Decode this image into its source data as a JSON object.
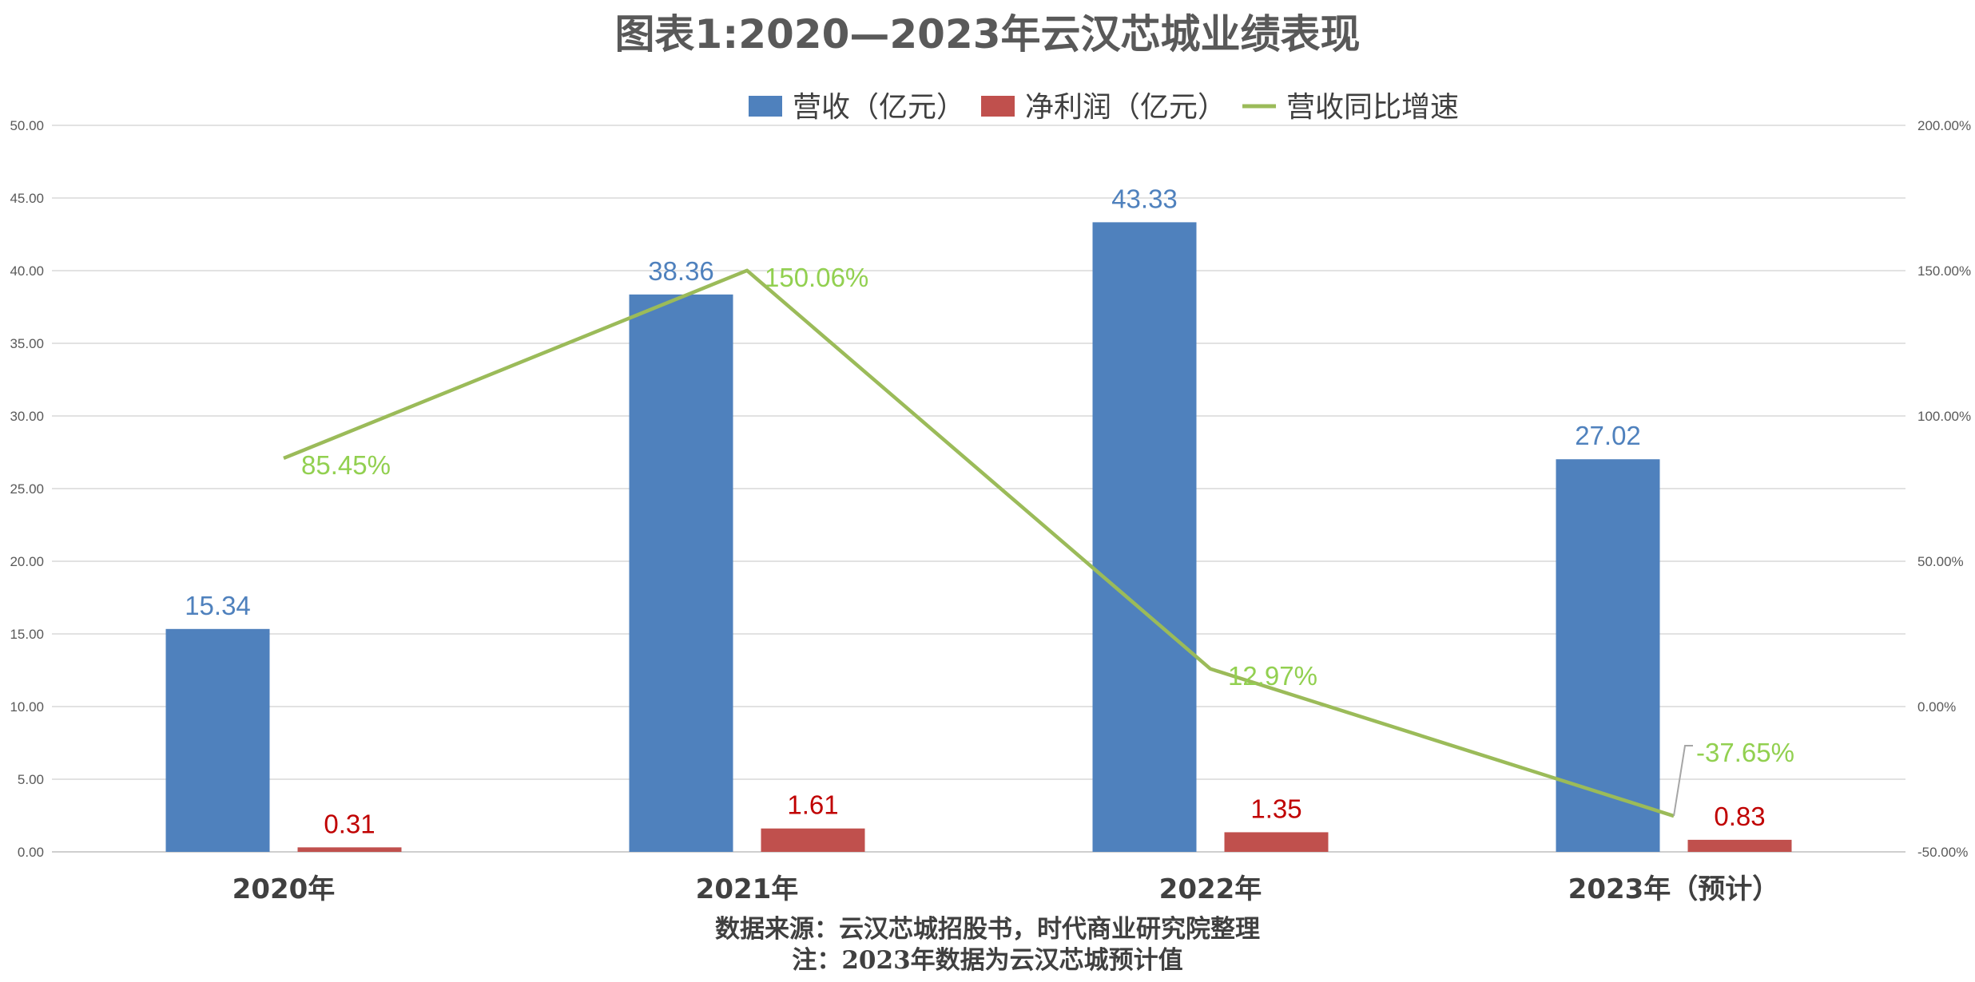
{
  "chart_data": {
    "type": "bar",
    "title": "图表1:2020—2023年云汉芯城业绩表现",
    "categories": [
      "2020年",
      "2021年",
      "2022年",
      "2023年（预计）"
    ],
    "series": [
      {
        "name": "营收（亿元）",
        "kind": "bar",
        "axis": "left",
        "color": "#4f81bd",
        "label_color": "#4f81bd",
        "values": [
          15.34,
          38.36,
          43.33,
          27.02
        ],
        "labels": [
          "15.34",
          "38.36",
          "43.33",
          "27.02"
        ]
      },
      {
        "name": "净利润（亿元）",
        "kind": "bar",
        "axis": "left",
        "color": "#c0504d",
        "label_color": "#c00000",
        "values": [
          0.31,
          1.61,
          1.35,
          0.83
        ],
        "labels": [
          "0.31",
          "1.61",
          "1.35",
          "0.83"
        ]
      },
      {
        "name": "营收同比增速",
        "kind": "line",
        "axis": "right",
        "color": "#9bbb59",
        "label_color": "#92d050",
        "values": [
          85.45,
          150.06,
          12.97,
          -37.65
        ],
        "labels": [
          "85.45%",
          "150.06%",
          "12.97%",
          "-37.65%"
        ]
      }
    ],
    "y_left": {
      "min": 0,
      "max": 50,
      "ticks": [
        "0.00",
        "5.00",
        "10.00",
        "15.00",
        "20.00",
        "25.00",
        "30.00",
        "35.00",
        "40.00",
        "45.00",
        "50.00"
      ]
    },
    "y_right": {
      "min": -50,
      "max": 200,
      "ticks": [
        "-50.00%",
        "0.00%",
        "50.00%",
        "100.00%",
        "150.00%",
        "200.00%"
      ]
    },
    "grid": true,
    "legend_position": "top-center",
    "notes": [
      "数据来源：云汉芯城招股书，时代商业研究院整理",
      "注：2023年数据为云汉芯城预计值"
    ]
  }
}
